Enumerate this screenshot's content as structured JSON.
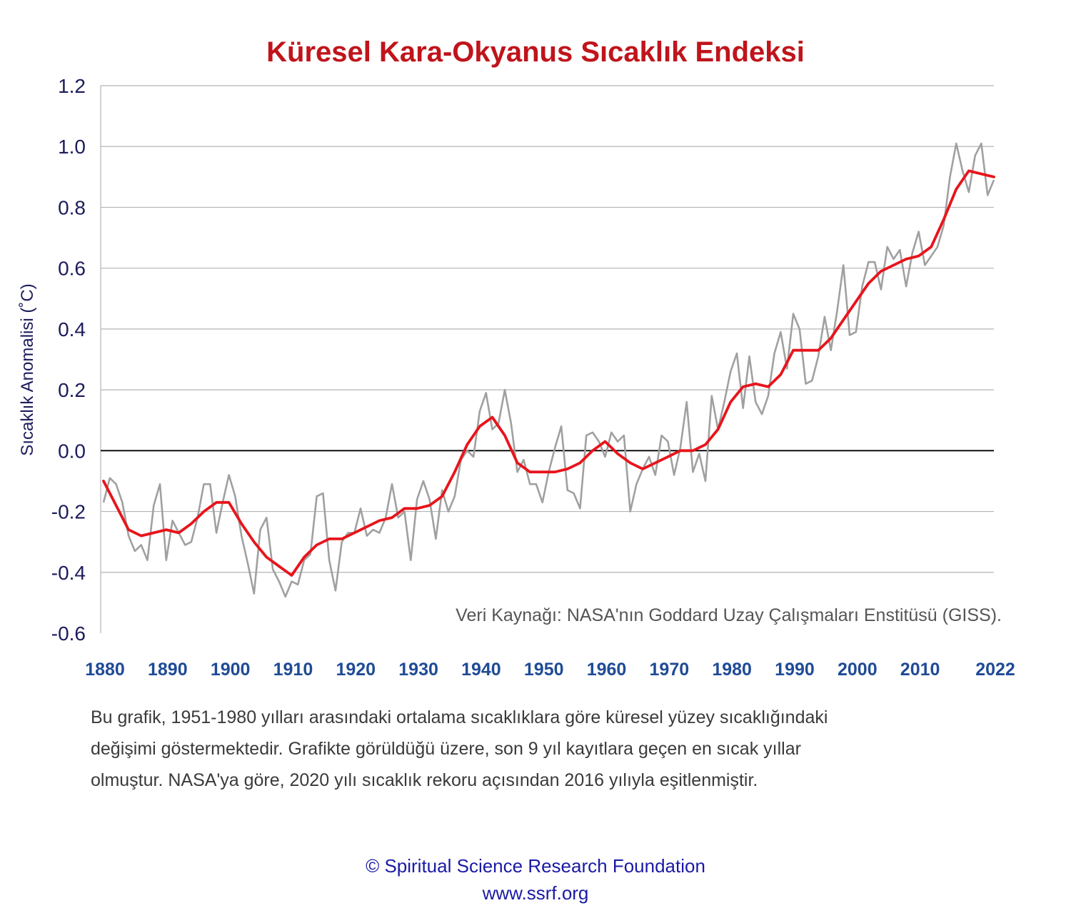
{
  "description": [
    "Bu grafik, 1951-1980 yılları arasındaki ortalama sıcaklıklara göre küresel yüzey sıcaklığındaki",
    "değişimi göstermektedir. Grafikte görüldüğü üzere, son 9 yıl kayıtlara geçen en sıcak yıllar",
    "olmuştur. NASA'ya göre, 2020 yılı sıcaklık rekoru açısından 2016 yılıyla eşitlenmiştir."
  ],
  "footer": {
    "copyright": "© Spiritual Science Research Foundation",
    "website": "www.ssrf.org"
  },
  "chart_data": {
    "type": "line",
    "title": "Küresel Kara-Okyanus Sıcaklık Endeksi",
    "ylabel": "Sıcaklık Anomalisi (˚C)",
    "xlabel": "",
    "source_note": "Veri Kaynağı: NASA'nın Goddard Uzay Çalışmaları Enstitüsü (GISS).",
    "xlim": [
      1880,
      2022
    ],
    "ylim": [
      -0.6,
      1.2
    ],
    "y_ticks": [
      -0.6,
      -0.4,
      -0.2,
      0.0,
      0.2,
      0.4,
      0.6,
      0.8,
      1.0,
      1.2
    ],
    "y_tick_labels": [
      "-0.6",
      "-0.4",
      "-0.2",
      "0.0",
      "0.2",
      "0.4",
      "0.6",
      "0.8",
      "1.0",
      "1.2"
    ],
    "x_ticks": [
      1880,
      1890,
      1900,
      1910,
      1920,
      1930,
      1940,
      1950,
      1960,
      1970,
      1980,
      1990,
      2000,
      2010,
      2022
    ],
    "x_tick_labels": [
      "1880",
      "1890",
      "1900",
      "1910",
      "1920",
      "1930",
      "1940",
      "1950",
      "1960",
      "1970",
      "1980",
      "1990",
      "2000",
      "2010",
      "2022"
    ],
    "grid": "horizontal",
    "zero_line": true,
    "colors": {
      "annual": "#a0a0a0",
      "smoothed": "#e8141b",
      "zero_line": "#000000",
      "grid": "#b5b5b5"
    },
    "series": [
      {
        "x": [
          1880,
          1881,
          1882,
          1883,
          1884,
          1885,
          1886,
          1887,
          1888,
          1889,
          1890,
          1891,
          1892,
          1893,
          1894,
          1895,
          1896,
          1897,
          1898,
          1899,
          1900,
          1901,
          1902,
          1903,
          1904,
          1905,
          1906,
          1907,
          1908,
          1909,
          1910,
          1911,
          1912,
          1913,
          1914,
          1915,
          1916,
          1917,
          1918,
          1919,
          1920,
          1921,
          1922,
          1923,
          1924,
          1925,
          1926,
          1927,
          1928,
          1929,
          1930,
          1931,
          1932,
          1933,
          1934,
          1935,
          1936,
          1937,
          1938,
          1939,
          1940,
          1941,
          1942,
          1943,
          1944,
          1945,
          1946,
          1947,
          1948,
          1949,
          1950,
          1951,
          1952,
          1953,
          1954,
          1955,
          1956,
          1957,
          1958,
          1959,
          1960,
          1961,
          1962,
          1963,
          1964,
          1965,
          1966,
          1967,
          1968,
          1969,
          1970,
          1971,
          1972,
          1973,
          1974,
          1975,
          1976,
          1977,
          1978,
          1979,
          1980,
          1981,
          1982,
          1983,
          1984,
          1985,
          1986,
          1987,
          1988,
          1989,
          1990,
          1991,
          1992,
          1993,
          1994,
          1995,
          1996,
          1997,
          1998,
          1999,
          2000,
          2001,
          2002,
          2003,
          2004,
          2005,
          2006,
          2007,
          2008,
          2009,
          2010,
          2011,
          2012,
          2013,
          2014,
          2015,
          2016,
          2017,
          2018,
          2019,
          2020,
          2021,
          2022
        ],
        "values": [
          -0.17,
          -0.09,
          -0.11,
          -0.17,
          -0.28,
          -0.33,
          -0.31,
          -0.36,
          -0.18,
          -0.11,
          -0.36,
          -0.23,
          -0.27,
          -0.31,
          -0.3,
          -0.22,
          -0.11,
          -0.11,
          -0.27,
          -0.17,
          -0.08,
          -0.15,
          -0.28,
          -0.37,
          -0.47,
          -0.26,
          -0.22,
          -0.39,
          -0.43,
          -0.48,
          -0.43,
          -0.44,
          -0.36,
          -0.34,
          -0.15,
          -0.14,
          -0.36,
          -0.46,
          -0.3,
          -0.27,
          -0.27,
          -0.19,
          -0.28,
          -0.26,
          -0.27,
          -0.22,
          -0.11,
          -0.22,
          -0.2,
          -0.36,
          -0.16,
          -0.1,
          -0.16,
          -0.29,
          -0.13,
          -0.2,
          -0.15,
          -0.03,
          0.0,
          -0.02,
          0.13,
          0.19,
          0.07,
          0.09,
          0.2,
          0.09,
          -0.07,
          -0.03,
          -0.11,
          -0.11,
          -0.17,
          -0.07,
          0.01,
          0.08,
          -0.13,
          -0.14,
          -0.19,
          0.05,
          0.06,
          0.03,
          -0.02,
          0.06,
          0.03,
          0.05,
          -0.2,
          -0.11,
          -0.06,
          -0.02,
          -0.08,
          0.05,
          0.03,
          -0.08,
          0.01,
          0.16,
          -0.07,
          -0.01,
          -0.1,
          0.18,
          0.07,
          0.16,
          0.26,
          0.32,
          0.14,
          0.31,
          0.16,
          0.12,
          0.18,
          0.32,
          0.39,
          0.27,
          0.45,
          0.4,
          0.22,
          0.23,
          0.31,
          0.44,
          0.33,
          0.46,
          0.61,
          0.38,
          0.39,
          0.54,
          0.62,
          0.62,
          0.53,
          0.67,
          0.63,
          0.66,
          0.54,
          0.65,
          0.72,
          0.61,
          0.64,
          0.67,
          0.74,
          0.9,
          1.01,
          0.92,
          0.85,
          0.97,
          1.01,
          0.84,
          0.89
        ]
      },
      {
        "x": [
          1880,
          1882,
          1884,
          1886,
          1888,
          1890,
          1892,
          1894,
          1896,
          1898,
          1900,
          1902,
          1904,
          1906,
          1908,
          1910,
          1912,
          1914,
          1916,
          1918,
          1920,
          1922,
          1924,
          1926,
          1928,
          1930,
          1932,
          1934,
          1936,
          1938,
          1940,
          1942,
          1944,
          1946,
          1948,
          1950,
          1952,
          1954,
          1956,
          1958,
          1960,
          1962,
          1964,
          1966,
          1968,
          1970,
          1972,
          1974,
          1976,
          1978,
          1980,
          1982,
          1984,
          1986,
          1988,
          1990,
          1992,
          1994,
          1996,
          1998,
          2000,
          2002,
          2004,
          2006,
          2008,
          2010,
          2012,
          2014,
          2016,
          2018,
          2020,
          2022
        ],
        "values": [
          -0.1,
          -0.18,
          -0.26,
          -0.28,
          -0.27,
          -0.26,
          -0.27,
          -0.24,
          -0.2,
          -0.17,
          -0.17,
          -0.24,
          -0.3,
          -0.35,
          -0.38,
          -0.41,
          -0.35,
          -0.31,
          -0.29,
          -0.29,
          -0.27,
          -0.25,
          -0.23,
          -0.22,
          -0.19,
          -0.19,
          -0.18,
          -0.15,
          -0.07,
          0.02,
          0.08,
          0.11,
          0.05,
          -0.04,
          -0.07,
          -0.07,
          -0.07,
          -0.06,
          -0.04,
          0.0,
          0.03,
          -0.01,
          -0.04,
          -0.06,
          -0.04,
          -0.02,
          0.0,
          0.0,
          0.02,
          0.07,
          0.16,
          0.21,
          0.22,
          0.21,
          0.25,
          0.33,
          0.33,
          0.33,
          0.37,
          0.43,
          0.49,
          0.55,
          0.59,
          0.61,
          0.63,
          0.64,
          0.67,
          0.76,
          0.86,
          0.92,
          0.91,
          0.9
        ]
      }
    ]
  }
}
